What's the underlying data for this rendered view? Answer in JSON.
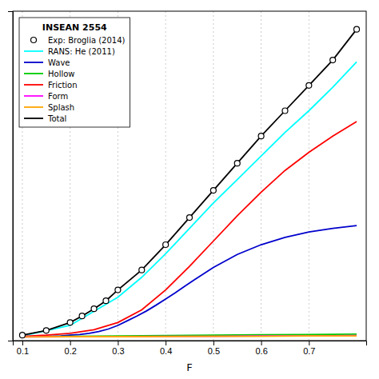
{
  "chart_data": {
    "type": "line",
    "title": "INSEAN 2554",
    "xlabel": "F",
    "xlim": [
      0.08,
      0.82
    ],
    "ylim": [
      -0.01,
      0.9
    ],
    "xticks": [
      0.1,
      0.2,
      0.3,
      0.4,
      0.5,
      0.6,
      0.7
    ],
    "yticks": [],
    "grid": true,
    "legend": "upper left",
    "tick_labels": "x",
    "series": [
      {
        "name": "Exp: Broglia (2014)",
        "type": "scatter",
        "marker": "circle",
        "color": "black",
        "x": [
          0.1,
          0.15,
          0.2,
          0.225,
          0.25,
          0.275,
          0.3,
          0.35,
          0.4,
          0.45,
          0.5,
          0.55,
          0.6,
          0.65,
          0.7,
          0.75,
          0.8
        ],
        "values": [
          0.005,
          0.018,
          0.04,
          0.058,
          0.078,
          0.1,
          0.13,
          0.185,
          0.255,
          0.33,
          0.405,
          0.48,
          0.555,
          0.625,
          0.695,
          0.765,
          0.85
        ]
      },
      {
        "name": "RANS: He (2011)",
        "type": "line",
        "color": "cyan",
        "x": [
          0.1,
          0.2,
          0.3,
          0.35,
          0.4,
          0.45,
          0.5,
          0.55,
          0.6,
          0.65,
          0.7,
          0.75,
          0.8
        ],
        "values": [
          0.003,
          0.032,
          0.11,
          0.165,
          0.23,
          0.3,
          0.37,
          0.435,
          0.5,
          0.565,
          0.625,
          0.69,
          0.76
        ]
      },
      {
        "name": "Wave",
        "type": "line",
        "color": "#0000cc",
        "x": [
          0.1,
          0.12,
          0.14,
          0.16,
          0.18,
          0.2,
          0.22,
          0.24,
          0.26,
          0.28,
          0.3,
          0.32,
          0.34,
          0.36,
          0.38,
          0.4,
          0.42,
          0.44,
          0.46,
          0.48,
          0.5,
          0.55,
          0.6,
          0.65,
          0.7,
          0.75,
          0.8
        ],
        "values": [
          0.001,
          0.001,
          0.001,
          0.002,
          0.003,
          0.005,
          0.007,
          0.01,
          0.015,
          0.022,
          0.032,
          0.045,
          0.058,
          0.072,
          0.088,
          0.105,
          0.122,
          0.14,
          0.158,
          0.175,
          0.192,
          0.228,
          0.255,
          0.275,
          0.29,
          0.3,
          0.308
        ]
      },
      {
        "name": "Hollow",
        "type": "line",
        "color": "#00cc00",
        "x": [
          0.1,
          0.2,
          0.3,
          0.4,
          0.5,
          0.6,
          0.7,
          0.8
        ],
        "values": [
          0.001,
          0.002,
          0.003,
          0.004,
          0.005,
          0.006,
          0.007,
          0.008
        ]
      },
      {
        "name": "Friction",
        "type": "line",
        "color": "red",
        "x": [
          0.1,
          0.15,
          0.2,
          0.25,
          0.3,
          0.35,
          0.4,
          0.45,
          0.5,
          0.55,
          0.6,
          0.65,
          0.7,
          0.75,
          0.8
        ],
        "values": [
          0.002,
          0.005,
          0.01,
          0.02,
          0.04,
          0.075,
          0.13,
          0.195,
          0.265,
          0.335,
          0.4,
          0.46,
          0.51,
          0.555,
          0.595
        ]
      },
      {
        "name": "Form",
        "type": "line",
        "color": "magenta",
        "x": [
          0.1,
          0.2,
          0.3,
          0.4,
          0.5,
          0.6,
          0.7,
          0.8
        ],
        "values": [
          0.0005,
          0.001,
          0.0015,
          0.002,
          0.002,
          0.003,
          0.003,
          0.004
        ]
      },
      {
        "name": "Splash",
        "type": "line",
        "color": "orange",
        "x": [
          0.1,
          0.2,
          0.3,
          0.4,
          0.5,
          0.6,
          0.7,
          0.8
        ],
        "values": [
          0.0003,
          0.001,
          0.001,
          0.0015,
          0.002,
          0.002,
          0.003,
          0.003
        ]
      },
      {
        "name": "Total",
        "type": "line",
        "color": "black",
        "x": [
          0.1,
          0.15,
          0.2,
          0.225,
          0.25,
          0.275,
          0.3,
          0.35,
          0.4,
          0.45,
          0.5,
          0.55,
          0.6,
          0.65,
          0.7,
          0.75,
          0.8
        ],
        "values": [
          0.005,
          0.018,
          0.04,
          0.058,
          0.078,
          0.1,
          0.13,
          0.185,
          0.255,
          0.33,
          0.405,
          0.48,
          0.555,
          0.625,
          0.695,
          0.765,
          0.85
        ]
      }
    ]
  }
}
